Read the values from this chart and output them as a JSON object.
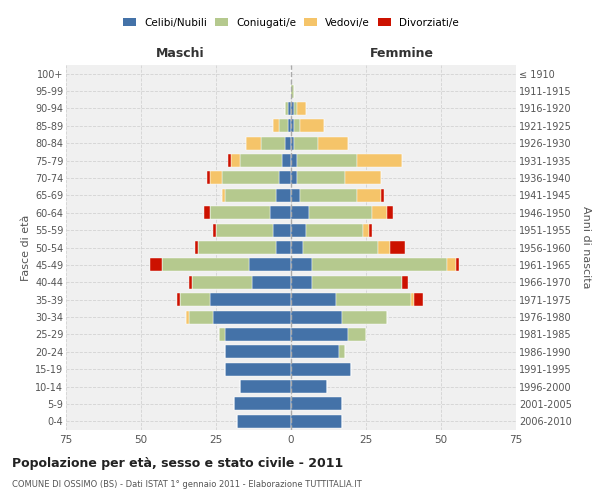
{
  "age_groups": [
    "100+",
    "95-99",
    "90-94",
    "85-89",
    "80-84",
    "75-79",
    "70-74",
    "65-69",
    "60-64",
    "55-59",
    "50-54",
    "45-49",
    "40-44",
    "35-39",
    "30-34",
    "25-29",
    "20-24",
    "15-19",
    "10-14",
    "5-9",
    "0-4"
  ],
  "birth_years": [
    "≤ 1910",
    "1911-1915",
    "1916-1920",
    "1921-1925",
    "1926-1930",
    "1931-1935",
    "1936-1940",
    "1941-1945",
    "1946-1950",
    "1951-1955",
    "1956-1960",
    "1961-1965",
    "1966-1970",
    "1971-1975",
    "1976-1980",
    "1981-1985",
    "1986-1990",
    "1991-1995",
    "1996-2000",
    "2001-2005",
    "2006-2010"
  ],
  "colors": {
    "celibi": "#4472a8",
    "coniugati": "#b5c98e",
    "vedovi": "#f5c469",
    "divorziati": "#cc1100"
  },
  "males": {
    "celibi": [
      0,
      0,
      1,
      1,
      2,
      3,
      4,
      5,
      7,
      6,
      5,
      14,
      13,
      27,
      26,
      22,
      22,
      22,
      17,
      19,
      18
    ],
    "coniugati": [
      0,
      0,
      1,
      3,
      8,
      14,
      19,
      17,
      20,
      19,
      26,
      29,
      20,
      10,
      8,
      2,
      0,
      0,
      0,
      0,
      0
    ],
    "vedovi": [
      0,
      0,
      0,
      2,
      5,
      3,
      4,
      1,
      0,
      0,
      0,
      0,
      0,
      0,
      1,
      0,
      0,
      0,
      0,
      0,
      0
    ],
    "divorziati": [
      0,
      0,
      0,
      0,
      0,
      1,
      1,
      0,
      2,
      1,
      1,
      4,
      1,
      1,
      0,
      0,
      0,
      0,
      0,
      0,
      0
    ]
  },
  "females": {
    "celibi": [
      0,
      0,
      1,
      1,
      1,
      2,
      2,
      3,
      6,
      5,
      4,
      7,
      7,
      15,
      17,
      19,
      16,
      20,
      12,
      17,
      17
    ],
    "coniugati": [
      0,
      1,
      1,
      2,
      8,
      20,
      16,
      19,
      21,
      19,
      25,
      45,
      30,
      25,
      15,
      6,
      2,
      0,
      0,
      0,
      0
    ],
    "vedovi": [
      0,
      0,
      3,
      8,
      10,
      15,
      12,
      8,
      5,
      2,
      4,
      3,
      0,
      1,
      0,
      0,
      0,
      0,
      0,
      0,
      0
    ],
    "divorziati": [
      0,
      0,
      0,
      0,
      0,
      0,
      0,
      1,
      2,
      1,
      5,
      1,
      2,
      3,
      0,
      0,
      0,
      0,
      0,
      0,
      0
    ]
  },
  "title": "Popolazione per età, sesso e stato civile - 2011",
  "subtitle": "COMUNE DI OSSIMO (BS) - Dati ISTAT 1° gennaio 2011 - Elaborazione TUTTITALIA.IT",
  "xlabel_left": "Maschi",
  "xlabel_right": "Femmine",
  "ylabel_left": "Fasce di età",
  "ylabel_right": "Anni di nascita",
  "xlim": 75,
  "legend_labels": [
    "Celibi/Nubili",
    "Coniugati/e",
    "Vedovi/e",
    "Divorziati/e"
  ],
  "bg_color": "#ffffff",
  "plot_bg_color": "#f0f0f0",
  "grid_color": "#cccccc"
}
